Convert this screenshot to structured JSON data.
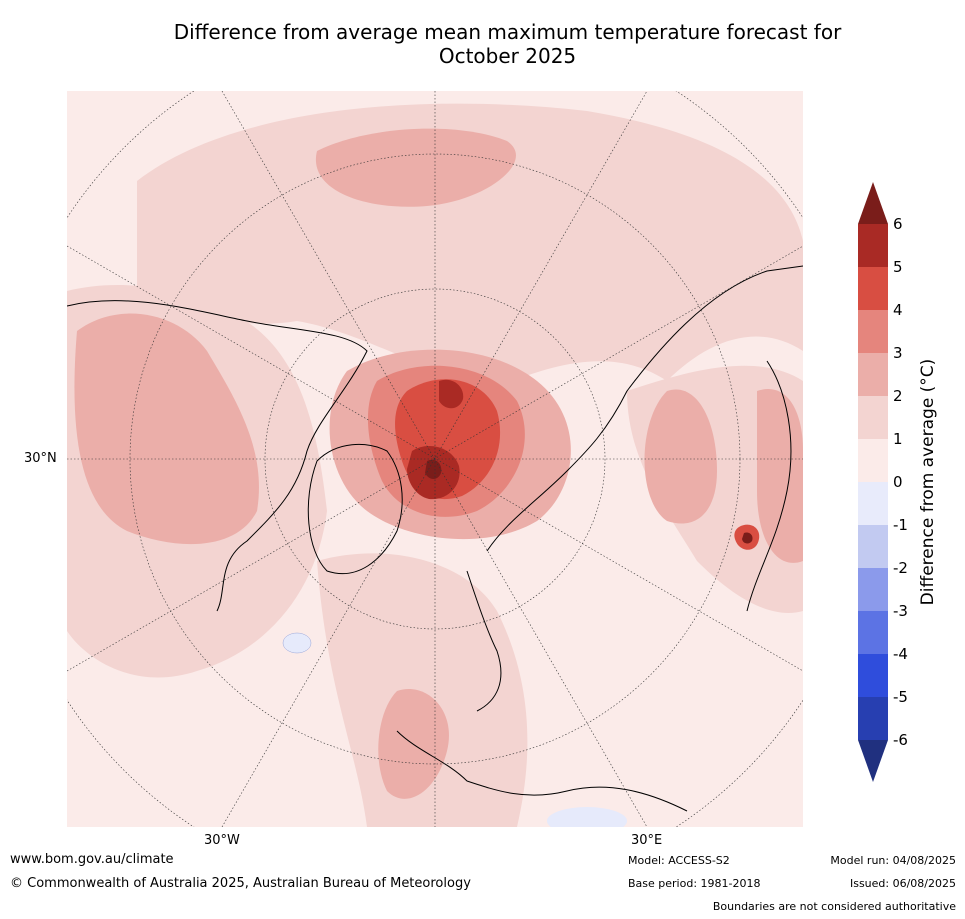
{
  "title_line1": "Difference from average mean maximum temperature forecast for",
  "title_line2": "October 2025",
  "map": {
    "projection": "north-polar-stereographic",
    "labels": {
      "lat30": "30°N",
      "lon_w": "30°W",
      "lon_e": "30°E"
    },
    "colors": {
      "c0_1": "#fbebe9",
      "c1_2": "#f3d4d1",
      "c2_3": "#ebaea9",
      "c3_4": "#e5857d",
      "c4_5": "#d94e42",
      "c5_6": "#aa2a24",
      "c6p": "#7a1d1a",
      "cm0": "#e6eafb",
      "cm1": "#c2caf1"
    }
  },
  "colorbar": {
    "label": "Difference from average (°C)",
    "ticks": [
      "6",
      "5",
      "4",
      "3",
      "2",
      "1",
      "0",
      "-1",
      "-2",
      "-3",
      "-4",
      "-5",
      "-6"
    ],
    "colors_top_to_bottom": [
      "#a92a25",
      "#d84e42",
      "#e5857d",
      "#ebaea9",
      "#f3d4d1",
      "#fbebe9",
      "#e8ebfb",
      "#c2caf1",
      "#8b9aeb",
      "#5c73e4",
      "#2f4ddc",
      "#273fb1"
    ],
    "over_color": "#7a1d1a",
    "under_color": "#20307f"
  },
  "footer": {
    "website": "www.bom.gov.au/climate",
    "copyright": "© Commonwealth of Australia 2025, Australian Bureau of Meteorology",
    "model": "Model: ACCESS-S2",
    "base_period": "Base period: 1981-2018",
    "model_run": "Model run: 04/08/2025",
    "issued": "Issued: 06/08/2025",
    "disclaimer": "Boundaries are not considered authoritative"
  }
}
